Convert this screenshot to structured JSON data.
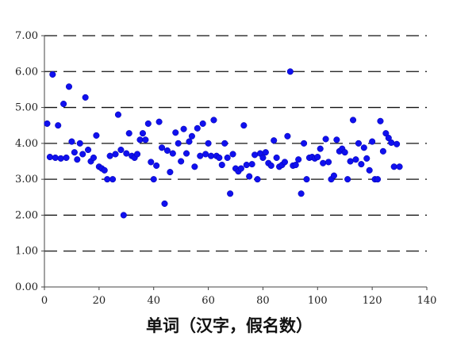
{
  "chart_data": {
    "type": "scatter",
    "title": "",
    "xlabel": "单词（汉字，假名数）",
    "ylabel": "",
    "xlim": [
      0,
      140
    ],
    "ylim": [
      0,
      7
    ],
    "x_ticks": [
      "0",
      "20",
      "40",
      "60",
      "80",
      "100",
      "120",
      "140"
    ],
    "y_ticks": [
      "0.00",
      "1.00",
      "2.00",
      "3.00",
      "4.00",
      "5.00",
      "6.00",
      "7.00"
    ],
    "grid": "horizontal dashed",
    "legend": "none",
    "marker_color": "#1010ee",
    "points": [
      [
        1,
        4.55
      ],
      [
        2,
        3.62
      ],
      [
        3,
        5.92
      ],
      [
        4,
        3.6
      ],
      [
        5,
        4.5
      ],
      [
        6,
        3.58
      ],
      [
        7,
        5.1
      ],
      [
        8,
        3.6
      ],
      [
        9,
        5.58
      ],
      [
        10,
        4.05
      ],
      [
        11,
        3.75
      ],
      [
        12,
        3.55
      ],
      [
        13,
        4.0
      ],
      [
        14,
        3.7
      ],
      [
        15,
        5.28
      ],
      [
        16,
        3.82
      ],
      [
        17,
        3.5
      ],
      [
        18,
        3.6
      ],
      [
        19,
        4.22
      ],
      [
        20,
        3.35
      ],
      [
        21,
        3.3
      ],
      [
        22,
        3.25
      ],
      [
        23,
        3.0
      ],
      [
        24,
        3.65
      ],
      [
        25,
        3.0
      ],
      [
        26,
        3.7
      ],
      [
        27,
        4.8
      ],
      [
        28,
        3.82
      ],
      [
        29,
        2.0
      ],
      [
        30,
        3.72
      ],
      [
        31,
        4.28
      ],
      [
        32,
        3.65
      ],
      [
        33,
        3.6
      ],
      [
        34,
        3.7
      ],
      [
        35,
        4.1
      ],
      [
        36,
        4.28
      ],
      [
        37,
        4.1
      ],
      [
        38,
        4.55
      ],
      [
        39,
        3.48
      ],
      [
        40,
        3.0
      ],
      [
        41,
        3.38
      ],
      [
        42,
        4.6
      ],
      [
        43,
        3.88
      ],
      [
        44,
        2.32
      ],
      [
        45,
        3.8
      ],
      [
        46,
        3.2
      ],
      [
        47,
        3.72
      ],
      [
        48,
        4.3
      ],
      [
        49,
        4.0
      ],
      [
        50,
        3.5
      ],
      [
        51,
        4.4
      ],
      [
        52,
        3.72
      ],
      [
        53,
        4.05
      ],
      [
        54,
        4.2
      ],
      [
        55,
        3.35
      ],
      [
        56,
        4.42
      ],
      [
        57,
        3.65
      ],
      [
        58,
        4.55
      ],
      [
        59,
        3.7
      ],
      [
        60,
        4.0
      ],
      [
        61,
        3.65
      ],
      [
        62,
        4.65
      ],
      [
        63,
        3.65
      ],
      [
        64,
        3.6
      ],
      [
        65,
        3.4
      ],
      [
        66,
        4.0
      ],
      [
        67,
        3.6
      ],
      [
        68,
        2.6
      ],
      [
        69,
        3.7
      ],
      [
        70,
        3.3
      ],
      [
        71,
        3.22
      ],
      [
        72,
        3.3
      ],
      [
        73,
        4.5
      ],
      [
        74,
        3.4
      ],
      [
        75,
        3.08
      ],
      [
        76,
        3.42
      ],
      [
        77,
        3.68
      ],
      [
        78,
        3.0
      ],
      [
        79,
        3.72
      ],
      [
        80,
        3.6
      ],
      [
        81,
        3.75
      ],
      [
        82,
        3.45
      ],
      [
        83,
        3.38
      ],
      [
        84,
        4.08
      ],
      [
        85,
        3.6
      ],
      [
        86,
        3.35
      ],
      [
        87,
        3.4
      ],
      [
        88,
        3.48
      ],
      [
        89,
        4.2
      ],
      [
        90,
        6.0
      ],
      [
        91,
        3.38
      ],
      [
        92,
        3.4
      ],
      [
        93,
        3.55
      ],
      [
        94,
        2.6
      ],
      [
        95,
        4.0
      ],
      [
        96,
        3.0
      ],
      [
        97,
        3.6
      ],
      [
        98,
        3.62
      ],
      [
        99,
        3.58
      ],
      [
        100,
        3.62
      ],
      [
        101,
        3.85
      ],
      [
        102,
        3.45
      ],
      [
        103,
        4.12
      ],
      [
        104,
        3.48
      ],
      [
        105,
        3.0
      ],
      [
        106,
        3.1
      ],
      [
        107,
        4.1
      ],
      [
        108,
        3.78
      ],
      [
        109,
        3.85
      ],
      [
        110,
        3.75
      ],
      [
        111,
        3.0
      ],
      [
        112,
        3.5
      ],
      [
        113,
        4.65
      ],
      [
        114,
        3.55
      ],
      [
        115,
        4.0
      ],
      [
        116,
        3.42
      ],
      [
        117,
        3.88
      ],
      [
        118,
        3.58
      ],
      [
        119,
        3.25
      ],
      [
        120,
        4.05
      ],
      [
        121,
        3.0
      ],
      [
        122,
        3.0
      ],
      [
        123,
        4.62
      ],
      [
        124,
        3.78
      ],
      [
        125,
        4.28
      ],
      [
        126,
        4.15
      ],
      [
        127,
        4.02
      ],
      [
        128,
        3.35
      ],
      [
        129,
        3.98
      ],
      [
        130,
        3.35
      ]
    ]
  }
}
